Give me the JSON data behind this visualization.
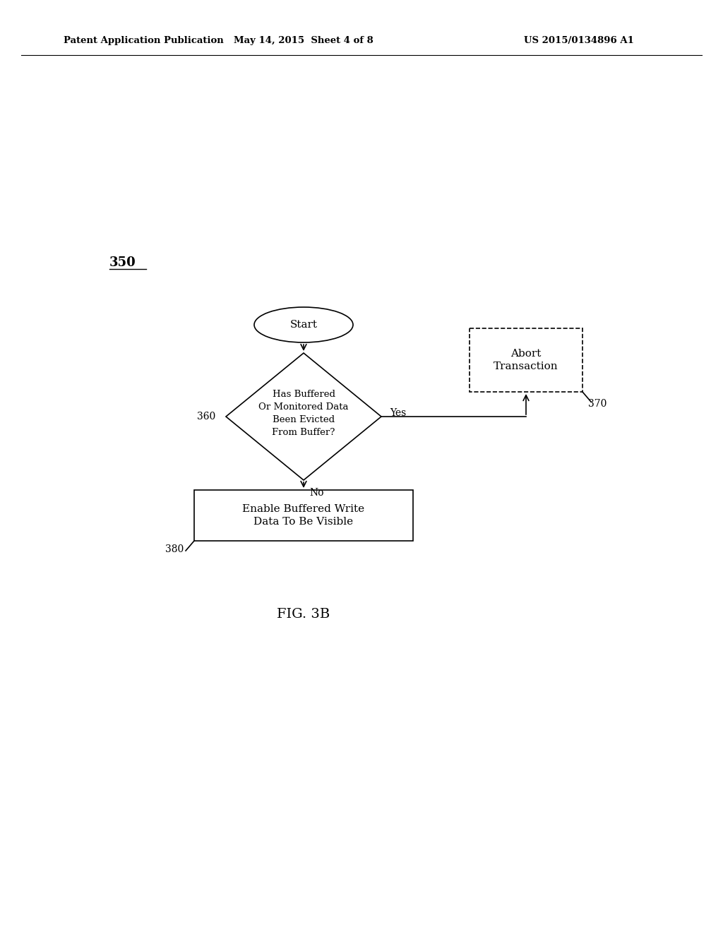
{
  "background_color": "#ffffff",
  "header_left": "Patent Application Publication",
  "header_center": "May 14, 2015  Sheet 4 of 8",
  "header_right": "US 2015/0134896 A1",
  "figure_label": "350",
  "fig_caption": "FIG. 3B",
  "start_label": "Start",
  "diamond_label": "Has Buffered\nOr Monitored Data\nBeen Evicted\nFrom Buffer?",
  "abort_label": "Abort\nTransaction",
  "enable_label": "Enable Buffered Write\nData To Be Visible",
  "label_360": "360",
  "label_370": "370",
  "label_380": "380",
  "yes_label": "Yes",
  "no_label": "No"
}
